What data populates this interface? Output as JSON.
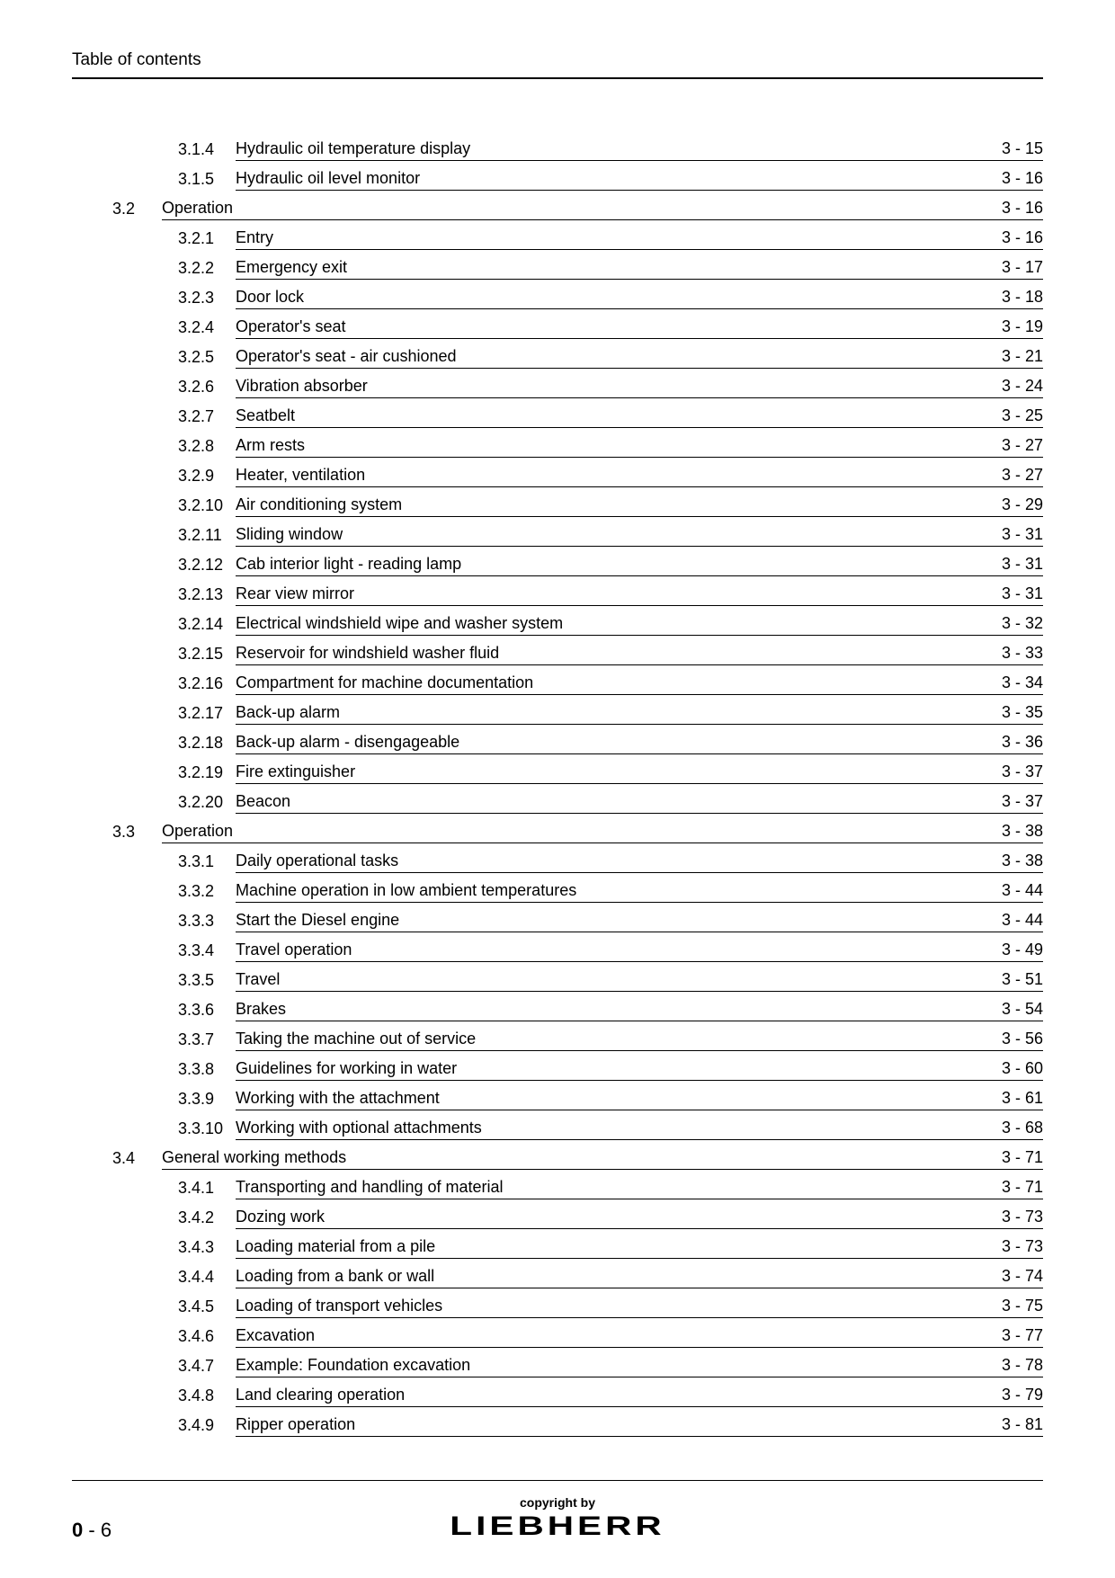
{
  "header": "Table of contents",
  "toc": [
    {
      "type": "sub",
      "num": "3.1.4",
      "title": "Hydraulic oil temperature display",
      "page": "3 - 15"
    },
    {
      "type": "sub",
      "num": "3.1.5",
      "title": "Hydraulic oil level monitor",
      "page": "3 - 16"
    },
    {
      "type": "section",
      "section": "3.2",
      "title": "Operation",
      "page": "3 - 16"
    },
    {
      "type": "sub",
      "num": "3.2.1",
      "title": "Entry",
      "page": "3 - 16"
    },
    {
      "type": "sub",
      "num": "3.2.2",
      "title": "Emergency exit",
      "page": "3 - 17"
    },
    {
      "type": "sub",
      "num": "3.2.3",
      "title": "Door lock",
      "page": "3 - 18"
    },
    {
      "type": "sub",
      "num": "3.2.4",
      "title": "Operator's seat",
      "page": "3 - 19"
    },
    {
      "type": "sub",
      "num": "3.2.5",
      "title": "Operator's seat - air cushioned",
      "page": "3 - 21"
    },
    {
      "type": "sub",
      "num": "3.2.6",
      "title": "Vibration absorber",
      "page": "3 - 24"
    },
    {
      "type": "sub",
      "num": "3.2.7",
      "title": "Seatbelt",
      "page": "3 - 25"
    },
    {
      "type": "sub",
      "num": "3.2.8",
      "title": "Arm rests",
      "page": "3 - 27"
    },
    {
      "type": "sub",
      "num": "3.2.9",
      "title": "Heater, ventilation",
      "page": "3 - 27"
    },
    {
      "type": "sub",
      "num": "3.2.10",
      "title": "Air conditioning system",
      "page": "3 - 29"
    },
    {
      "type": "sub",
      "num": "3.2.11",
      "title": "Sliding window",
      "page": "3 - 31"
    },
    {
      "type": "sub",
      "num": "3.2.12",
      "title": "Cab interior light - reading lamp",
      "page": "3 - 31"
    },
    {
      "type": "sub",
      "num": "3.2.13",
      "title": "Rear view mirror",
      "page": "3 - 31"
    },
    {
      "type": "sub",
      "num": "3.2.14",
      "title": "Electrical windshield wipe and washer system",
      "page": "3 - 32"
    },
    {
      "type": "sub",
      "num": "3.2.15",
      "title": "Reservoir for windshield washer fluid",
      "page": "3 - 33"
    },
    {
      "type": "sub",
      "num": "3.2.16",
      "title": "Compartment for machine documentation",
      "page": "3 - 34"
    },
    {
      "type": "sub",
      "num": "3.2.17",
      "title": "Back-up alarm",
      "page": "3 - 35"
    },
    {
      "type": "sub",
      "num": "3.2.18",
      "title": "Back-up alarm - disengageable",
      "page": "3 - 36"
    },
    {
      "type": "sub",
      "num": "3.2.19",
      "title": "Fire extinguisher",
      "page": "3 - 37"
    },
    {
      "type": "sub",
      "num": "3.2.20",
      "title": "Beacon",
      "page": "3 - 37"
    },
    {
      "type": "section",
      "section": "3.3",
      "title": "Operation",
      "page": "3 - 38"
    },
    {
      "type": "sub",
      "num": "3.3.1",
      "title": "Daily operational tasks",
      "page": "3 - 38"
    },
    {
      "type": "sub",
      "num": "3.3.2",
      "title": "Machine operation in low ambient temperatures",
      "page": "3 - 44"
    },
    {
      "type": "sub",
      "num": "3.3.3",
      "title": "Start the Diesel engine",
      "page": "3 - 44"
    },
    {
      "type": "sub",
      "num": "3.3.4",
      "title": "Travel operation",
      "page": "3 - 49"
    },
    {
      "type": "sub",
      "num": "3.3.5",
      "title": "Travel",
      "page": "3 - 51"
    },
    {
      "type": "sub",
      "num": "3.3.6",
      "title": "Brakes",
      "page": "3 - 54"
    },
    {
      "type": "sub",
      "num": "3.3.7",
      "title": "Taking the machine out of service",
      "page": "3 - 56"
    },
    {
      "type": "sub",
      "num": "3.3.8",
      "title": "Guidelines for working in water",
      "page": "3 - 60"
    },
    {
      "type": "sub",
      "num": "3.3.9",
      "title": "Working with the attachment",
      "page": "3 - 61"
    },
    {
      "type": "sub",
      "num": "3.3.10",
      "title": "Working with optional attachments",
      "page": "3 - 68"
    },
    {
      "type": "section",
      "section": "3.4",
      "title": "General working methods",
      "page": "3 - 71"
    },
    {
      "type": "sub",
      "num": "3.4.1",
      "title": "Transporting and handling of material",
      "page": "3 - 71"
    },
    {
      "type": "sub",
      "num": "3.4.2",
      "title": "Dozing work",
      "page": "3 - 73"
    },
    {
      "type": "sub",
      "num": "3.4.3",
      "title": "Loading material from a pile",
      "page": "3 - 73"
    },
    {
      "type": "sub",
      "num": "3.4.4",
      "title": "Loading from a bank or wall",
      "page": "3 - 74"
    },
    {
      "type": "sub",
      "num": "3.4.5",
      "title": "Loading of transport vehicles",
      "page": "3 - 75"
    },
    {
      "type": "sub",
      "num": "3.4.6",
      "title": "Excavation",
      "page": "3 - 77"
    },
    {
      "type": "sub",
      "num": "3.4.7",
      "title": "Example: Foundation excavation",
      "page": "3 - 78"
    },
    {
      "type": "sub",
      "num": "3.4.8",
      "title": "Land clearing operation",
      "page": "3 - 79"
    },
    {
      "type": "sub",
      "num": "3.4.9",
      "title": "Ripper operation",
      "page": "3 - 81"
    }
  ],
  "footer": {
    "page_prefix": "0",
    "page_sep": " - ",
    "page_number": "6",
    "copyright": "copyright by",
    "brand": "LIEBHERR"
  }
}
